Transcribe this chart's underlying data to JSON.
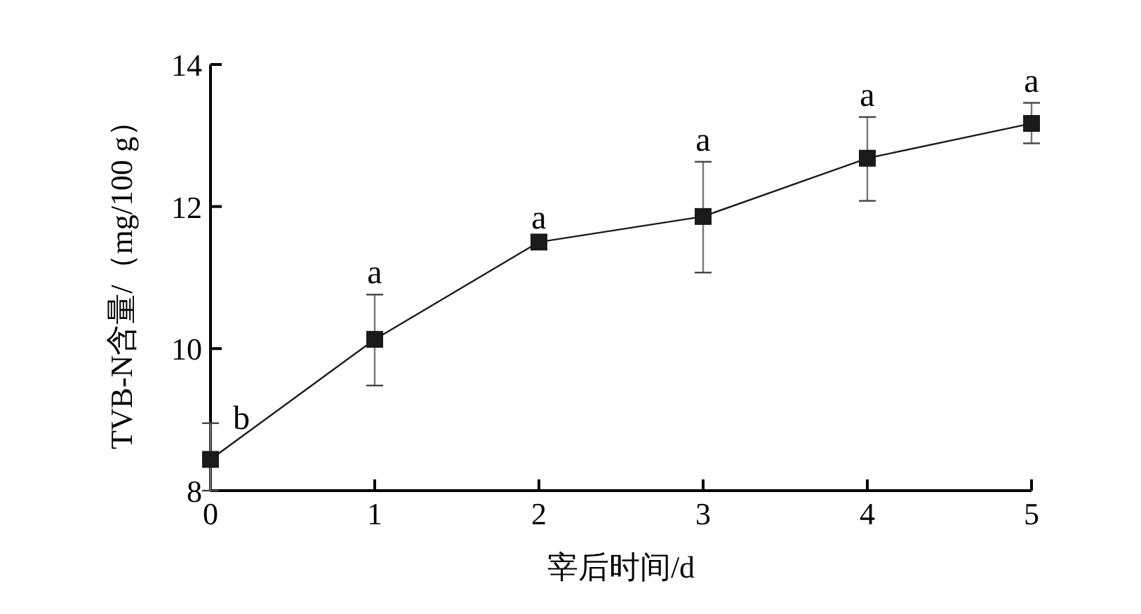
{
  "chart_data": {
    "type": "line",
    "xlabel": "宰后时间/d",
    "ylabel": "TVB-N含量/（mg/100 g）",
    "x": [
      0,
      1,
      2,
      3,
      4,
      5
    ],
    "series": [
      {
        "color": "#1a1a1a",
        "values": [
          8.44,
          10.13,
          11.5,
          11.86,
          12.68,
          13.17
        ],
        "errors": [
          [
            8,
            8.95
          ],
          [
            9.48,
            10.76
          ],
          null,
          [
            11.07,
            12.63
          ],
          [
            12.08,
            13.26
          ],
          [
            12.89,
            13.46
          ]
        ]
      }
    ],
    "xlim": [
      0,
      5
    ],
    "xticks": [
      0,
      1,
      2,
      3,
      4,
      5
    ],
    "ylim": [
      8,
      14
    ],
    "yticks": [
      8,
      10,
      12,
      14
    ],
    "marker": "square",
    "line_style": "solid",
    "grid": false,
    "annotations": [
      {
        "text": "b",
        "x": 0,
        "y": 8.95
      },
      {
        "text": "a",
        "x": 1,
        "y": 10.76
      },
      {
        "text": "a",
        "x": 2,
        "y": 11.53
      },
      {
        "text": "a",
        "x": 3,
        "y": 12.63
      },
      {
        "text": "a",
        "x": 4,
        "y": 13.26
      },
      {
        "text": "a",
        "x": 5,
        "y": 13.46
      }
    ]
  }
}
